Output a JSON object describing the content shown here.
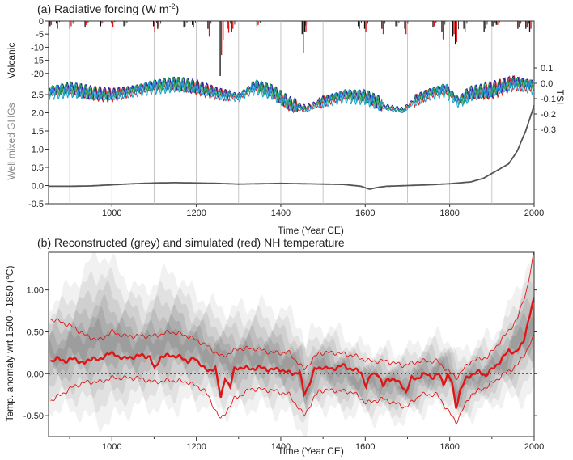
{
  "chart_data": [
    {
      "id": "panel-a",
      "type": "line",
      "title": "(a)  Radiative forcing (W m",
      "title_sup": "-2",
      "title_end": ")",
      "xlabel": "Time (Year CE)",
      "xlim": [
        850,
        2000
      ],
      "xticks": [
        1000,
        1200,
        1400,
        1600,
        1800,
        2000
      ],
      "grid": "vertical every 100 years",
      "volcanic": {
        "ylabel": "Volcanic",
        "ylim": [
          -25,
          0
        ],
        "yticks": [
          0,
          -5,
          -10,
          -15,
          -20
        ],
        "events": [
          {
            "year": 855,
            "black": -2,
            "red": -1.5
          },
          {
            "year": 870,
            "black": -1,
            "red": -3
          },
          {
            "year": 902,
            "black": -3,
            "red": -2
          },
          {
            "year": 938,
            "black": -2.5,
            "red": -1.5
          },
          {
            "year": 975,
            "black": -2,
            "red": -1
          },
          {
            "year": 1001,
            "black": -1,
            "red": -2.5
          },
          {
            "year": 1030,
            "black": -2,
            "red": -1.5
          },
          {
            "year": 1100,
            "black": -2,
            "red": -4
          },
          {
            "year": 1110,
            "black": -3,
            "red": -2
          },
          {
            "year": 1172,
            "black": -2.5,
            "red": -2
          },
          {
            "year": 1192,
            "black": -1.5,
            "red": -2.5
          },
          {
            "year": 1229,
            "black": -3,
            "red": -6
          },
          {
            "year": 1258,
            "black": -21,
            "red": -13
          },
          {
            "year": 1275,
            "black": -3,
            "red": -4.5
          },
          {
            "year": 1285,
            "black": -4,
            "red": -3
          },
          {
            "year": 1345,
            "black": -2,
            "red": -1.5
          },
          {
            "year": 1452,
            "black": -5,
            "red": -12
          },
          {
            "year": 1458,
            "black": -4,
            "red": -4
          },
          {
            "year": 1585,
            "black": -2,
            "red": -3
          },
          {
            "year": 1600,
            "black": -3,
            "red": -4
          },
          {
            "year": 1641,
            "black": -3,
            "red": -5
          },
          {
            "year": 1674,
            "black": -2,
            "red": -2
          },
          {
            "year": 1695,
            "black": -3,
            "red": -5
          },
          {
            "year": 1762,
            "black": -2.5,
            "red": -2
          },
          {
            "year": 1783,
            "black": -4,
            "red": -7
          },
          {
            "year": 1809,
            "black": -6,
            "red": -5
          },
          {
            "year": 1815,
            "black": -9,
            "red": -8
          },
          {
            "year": 1835,
            "black": -3,
            "red": -4
          },
          {
            "year": 1883,
            "black": -4,
            "red": -3
          },
          {
            "year": 1902,
            "black": -2,
            "red": -2
          },
          {
            "year": 1912,
            "black": -1.5,
            "red": -1.5
          },
          {
            "year": 1963,
            "black": -3,
            "red": -2.5
          },
          {
            "year": 1982,
            "black": -3,
            "red": -2.5
          },
          {
            "year": 1991,
            "black": -4,
            "red": -3
          }
        ]
      },
      "tsi": {
        "ylabel": "TSI",
        "ylim": [
          -0.35,
          0.15
        ],
        "yticks": [
          0.1,
          0.0,
          -0.1,
          -0.2,
          -0.3
        ],
        "tick_labels": [
          "0.1",
          "0.0",
          "-0.1",
          "-0.2",
          "-0.3"
        ],
        "colors": [
          "#d42020",
          "#2020a8",
          "#1e9e4a",
          "#1aa0d8"
        ],
        "baseline_points": [
          [
            850,
            -0.06
          ],
          [
            900,
            -0.04
          ],
          [
            950,
            -0.07
          ],
          [
            1000,
            -0.08
          ],
          [
            1050,
            -0.05
          ],
          [
            1100,
            -0.02
          ],
          [
            1150,
            -0.01
          ],
          [
            1200,
            -0.03
          ],
          [
            1250,
            -0.07
          ],
          [
            1300,
            -0.09
          ],
          [
            1340,
            -0.02
          ],
          [
            1380,
            -0.06
          ],
          [
            1420,
            -0.14
          ],
          [
            1460,
            -0.17
          ],
          [
            1500,
            -0.12
          ],
          [
            1550,
            -0.08
          ],
          [
            1600,
            -0.09
          ],
          [
            1650,
            -0.16
          ],
          [
            1690,
            -0.18
          ],
          [
            1715,
            -0.12
          ],
          [
            1750,
            -0.07
          ],
          [
            1790,
            -0.04
          ],
          [
            1820,
            -0.12
          ],
          [
            1850,
            -0.07
          ],
          [
            1900,
            -0.05
          ],
          [
            1950,
            0.0
          ],
          [
            2000,
            -0.02
          ]
        ]
      },
      "ghg": {
        "ylabel": "Well mixed GHGs",
        "ylim": [
          -0.5,
          2.5
        ],
        "yticks": [
          2.5,
          2.0,
          1.5,
          1.0,
          0.5,
          0.0,
          -0.5
        ],
        "tick_labels": [
          "2.5",
          "2.0",
          "1.5",
          "1.0",
          "0.5",
          "0.0",
          "-0.5"
        ],
        "color": "#555555",
        "points": [
          [
            850,
            -0.02
          ],
          [
            900,
            -0.02
          ],
          [
            950,
            -0.01
          ],
          [
            1000,
            0.02
          ],
          [
            1050,
            0.05
          ],
          [
            1100,
            0.07
          ],
          [
            1150,
            0.08
          ],
          [
            1200,
            0.07
          ],
          [
            1250,
            0.06
          ],
          [
            1300,
            0.04
          ],
          [
            1350,
            0.05
          ],
          [
            1400,
            0.06
          ],
          [
            1450,
            0.05
          ],
          [
            1500,
            0.04
          ],
          [
            1550,
            0.03
          ],
          [
            1590,
            -0.02
          ],
          [
            1610,
            -0.1
          ],
          [
            1630,
            -0.05
          ],
          [
            1650,
            -0.02
          ],
          [
            1700,
            0.0
          ],
          [
            1750,
            0.02
          ],
          [
            1800,
            0.05
          ],
          [
            1850,
            0.1
          ],
          [
            1880,
            0.2
          ],
          [
            1910,
            0.4
          ],
          [
            1940,
            0.6
          ],
          [
            1960,
            0.95
          ],
          [
            1980,
            1.5
          ],
          [
            2000,
            2.2
          ]
        ]
      }
    },
    {
      "id": "panel-b",
      "type": "area",
      "title": "(b)  Reconstructed (grey) and simulated (red) NH temperature",
      "xlabel": "Time (Year CE)",
      "ylabel": "Temp. anomaly wrt 1500 - 1850 (°C)",
      "xlim": [
        850,
        2000
      ],
      "ylim": [
        -0.75,
        1.45
      ],
      "xticks": [
        1000,
        1200,
        1400,
        1600,
        1800,
        2000
      ],
      "yticks": [
        1.0,
        0.5,
        0.0,
        -0.5
      ],
      "tick_labels": [
        "1.00",
        "0.50",
        "0.00",
        "-0.50"
      ],
      "zero_line": "dotted",
      "reconstruction_color": "#7a7a7a",
      "simulation_color": "#e01515",
      "reconstruction": {
        "years": [
          850,
          875,
          900,
          925,
          950,
          975,
          1000,
          1025,
          1050,
          1075,
          1100,
          1125,
          1150,
          1175,
          1200,
          1225,
          1250,
          1275,
          1300,
          1325,
          1350,
          1375,
          1400,
          1425,
          1450,
          1460,
          1475,
          1500,
          1525,
          1550,
          1575,
          1600,
          1625,
          1650,
          1675,
          1700,
          1725,
          1750,
          1775,
          1800,
          1820,
          1840,
          1860,
          1880,
          1900,
          1925,
          1950,
          1975,
          2000
        ],
        "center": [
          0.22,
          0.25,
          0.3,
          0.35,
          0.4,
          0.42,
          0.4,
          0.35,
          0.32,
          0.3,
          0.35,
          0.38,
          0.4,
          0.35,
          0.3,
          0.25,
          0.2,
          0.15,
          0.18,
          0.2,
          0.22,
          0.18,
          0.15,
          0.1,
          -0.05,
          -0.2,
          0.05,
          0.08,
          0.05,
          0.0,
          -0.05,
          -0.08,
          -0.12,
          -0.1,
          -0.15,
          -0.12,
          -0.05,
          0.0,
          0.05,
          0.0,
          -0.2,
          -0.1,
          -0.05,
          0.0,
          0.05,
          0.15,
          0.3,
          0.45,
          0.6
        ],
        "spread": [
          0.45,
          0.5,
          0.55,
          0.6,
          0.7,
          0.75,
          0.7,
          0.6,
          0.55,
          0.5,
          0.55,
          0.6,
          0.6,
          0.5,
          0.5,
          0.45,
          0.45,
          0.45,
          0.45,
          0.45,
          0.45,
          0.45,
          0.45,
          0.45,
          0.45,
          0.4,
          0.35,
          0.35,
          0.35,
          0.35,
          0.3,
          0.3,
          0.3,
          0.3,
          0.3,
          0.3,
          0.3,
          0.3,
          0.3,
          0.3,
          0.3,
          0.3,
          0.3,
          0.3,
          0.3,
          0.35,
          0.45,
          0.55,
          0.6
        ]
      },
      "simulation": {
        "mean_points": [
          [
            855,
            0.15
          ],
          [
            870,
            0.18
          ],
          [
            890,
            0.15
          ],
          [
            910,
            0.18
          ],
          [
            935,
            0.12
          ],
          [
            955,
            0.2
          ],
          [
            970,
            0.15
          ],
          [
            990,
            0.25
          ],
          [
            1010,
            0.22
          ],
          [
            1030,
            0.18
          ],
          [
            1050,
            0.2
          ],
          [
            1070,
            0.22
          ],
          [
            1090,
            0.2
          ],
          [
            1101,
            0.05
          ],
          [
            1115,
            0.2
          ],
          [
            1140,
            0.22
          ],
          [
            1160,
            0.2
          ],
          [
            1180,
            0.15
          ],
          [
            1195,
            0.18
          ],
          [
            1210,
            0.12
          ],
          [
            1228,
            0.02
          ],
          [
            1245,
            0.08
          ],
          [
            1258,
            -0.3
          ],
          [
            1268,
            -0.05
          ],
          [
            1280,
            -0.15
          ],
          [
            1290,
            0.05
          ],
          [
            1310,
            0.08
          ],
          [
            1330,
            0.05
          ],
          [
            1345,
            0.08
          ],
          [
            1370,
            0.05
          ],
          [
            1400,
            0.05
          ],
          [
            1425,
            0.0
          ],
          [
            1445,
            0.02
          ],
          [
            1455,
            -0.25
          ],
          [
            1465,
            -0.15
          ],
          [
            1480,
            0.05
          ],
          [
            1500,
            0.08
          ],
          [
            1520,
            0.05
          ],
          [
            1545,
            0.1
          ],
          [
            1570,
            0.05
          ],
          [
            1590,
            0.02
          ],
          [
            1602,
            -0.15
          ],
          [
            1615,
            0.0
          ],
          [
            1630,
            0.0
          ],
          [
            1642,
            -0.15
          ],
          [
            1655,
            -0.05
          ],
          [
            1670,
            -0.08
          ],
          [
            1685,
            -0.12
          ],
          [
            1697,
            -0.22
          ],
          [
            1710,
            -0.05
          ],
          [
            1725,
            -0.05
          ],
          [
            1745,
            0.0
          ],
          [
            1762,
            -0.05
          ],
          [
            1775,
            0.0
          ],
          [
            1785,
            -0.12
          ],
          [
            1795,
            -0.02
          ],
          [
            1805,
            -0.1
          ],
          [
            1815,
            -0.4
          ],
          [
            1825,
            -0.2
          ],
          [
            1840,
            -0.05
          ],
          [
            1855,
            0.0
          ],
          [
            1870,
            0.02
          ],
          [
            1885,
            -0.02
          ],
          [
            1900,
            0.05
          ],
          [
            1920,
            0.15
          ],
          [
            1940,
            0.28
          ],
          [
            1955,
            0.25
          ],
          [
            1965,
            0.3
          ],
          [
            1975,
            0.4
          ],
          [
            1985,
            0.6
          ],
          [
            1995,
            0.8
          ],
          [
            2000,
            0.9
          ]
        ],
        "upper_points": [
          [
            855,
            0.65
          ],
          [
            880,
            0.62
          ],
          [
            910,
            0.55
          ],
          [
            940,
            0.45
          ],
          [
            970,
            0.4
          ],
          [
            1000,
            0.5
          ],
          [
            1030,
            0.45
          ],
          [
            1060,
            0.45
          ],
          [
            1100,
            0.45
          ],
          [
            1140,
            0.5
          ],
          [
            1180,
            0.45
          ],
          [
            1220,
            0.35
          ],
          [
            1260,
            0.2
          ],
          [
            1300,
            0.3
          ],
          [
            1340,
            0.3
          ],
          [
            1380,
            0.25
          ],
          [
            1420,
            0.25
          ],
          [
            1455,
            0.05
          ],
          [
            1490,
            0.25
          ],
          [
            1530,
            0.25
          ],
          [
            1570,
            0.22
          ],
          [
            1610,
            0.15
          ],
          [
            1650,
            0.15
          ],
          [
            1690,
            0.1
          ],
          [
            1730,
            0.15
          ],
          [
            1770,
            0.15
          ],
          [
            1815,
            -0.05
          ],
          [
            1850,
            0.15
          ],
          [
            1890,
            0.2
          ],
          [
            1930,
            0.45
          ],
          [
            1960,
            0.65
          ],
          [
            1985,
            1.05
          ],
          [
            2000,
            1.45
          ]
        ],
        "lower_points": [
          [
            855,
            -0.32
          ],
          [
            880,
            -0.25
          ],
          [
            910,
            -0.15
          ],
          [
            940,
            -0.1
          ],
          [
            970,
            -0.1
          ],
          [
            1000,
            -0.05
          ],
          [
            1030,
            -0.05
          ],
          [
            1060,
            -0.05
          ],
          [
            1100,
            -0.1
          ],
          [
            1140,
            -0.08
          ],
          [
            1180,
            -0.1
          ],
          [
            1220,
            -0.2
          ],
          [
            1258,
            -0.55
          ],
          [
            1290,
            -0.3
          ],
          [
            1330,
            -0.18
          ],
          [
            1380,
            -0.2
          ],
          [
            1420,
            -0.25
          ],
          [
            1455,
            -0.5
          ],
          [
            1490,
            -0.2
          ],
          [
            1530,
            -0.2
          ],
          [
            1570,
            -0.22
          ],
          [
            1603,
            -0.35
          ],
          [
            1640,
            -0.3
          ],
          [
            1697,
            -0.4
          ],
          [
            1730,
            -0.25
          ],
          [
            1770,
            -0.25
          ],
          [
            1815,
            -0.58
          ],
          [
            1850,
            -0.25
          ],
          [
            1890,
            -0.15
          ],
          [
            1930,
            0.0
          ],
          [
            1960,
            0.1
          ],
          [
            1985,
            0.3
          ],
          [
            2000,
            0.45
          ]
        ]
      }
    }
  ]
}
